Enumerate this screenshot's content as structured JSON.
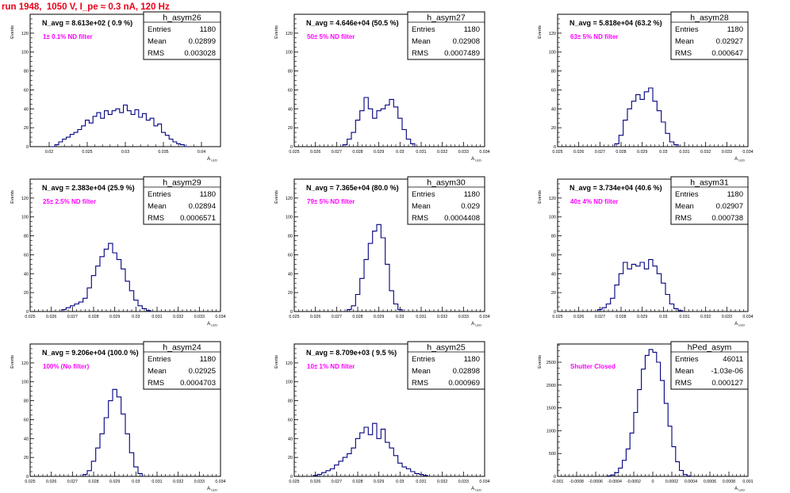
{
  "page_title": "run 1948,  1050 V, I_pe ≈ 0.3 nA, 120 Hz",
  "colors": {
    "hist": "#000080",
    "annot": "#ff00ff",
    "title": "#e8001a",
    "frame": "#000000"
  },
  "common": {
    "ylabel": "Events",
    "xlabel": "A",
    "xlabel_sub": "LED",
    "stat_labels": [
      "Entries",
      "Mean",
      "RMS"
    ]
  },
  "chart_data": [
    {
      "type": "histogram",
      "name": "h_asym26",
      "header": "N_avg = 8.613e+02 ( 0.9 %)",
      "annotation": "1± 0.1% ND filter",
      "stats": {
        "entries": "1180",
        "mean": "0.02899",
        "rms": "0.003028"
      },
      "xlim": [
        0.0175,
        0.0425
      ],
      "ylim": [
        0,
        140
      ],
      "xticks": [
        0.02,
        0.025,
        0.03,
        0.035,
        0.04
      ],
      "xtick_labels": [
        "0.02",
        "0.025",
        "0.03",
        "0.035",
        "0.04"
      ],
      "yticks": [
        0,
        20,
        40,
        60,
        80,
        100,
        120
      ],
      "x": [
        0.0205,
        0.021,
        0.0215,
        0.022,
        0.0225,
        0.023,
        0.0235,
        0.024,
        0.0245,
        0.025,
        0.0255,
        0.026,
        0.0265,
        0.027,
        0.0275,
        0.028,
        0.0285,
        0.029,
        0.0295,
        0.03,
        0.0305,
        0.031,
        0.0315,
        0.032,
        0.0325,
        0.033,
        0.0335,
        0.034,
        0.0345,
        0.035,
        0.0355,
        0.036,
        0.0365,
        0.037,
        0.0375,
        0.038
      ],
      "values": [
        0,
        2,
        5,
        8,
        10,
        13,
        15,
        18,
        22,
        28,
        25,
        32,
        36,
        30,
        38,
        34,
        38,
        40,
        36,
        44,
        38,
        34,
        39,
        31,
        35,
        28,
        30,
        22,
        24,
        15,
        12,
        8,
        5,
        3,
        2,
        0
      ]
    },
    {
      "type": "histogram",
      "name": "h_asym27",
      "header": "N_avg = 4.646e+04 (50.5 %)",
      "annotation": "50± 5% ND filter",
      "stats": {
        "entries": "1180",
        "mean": "0.02908",
        "rms": "0.0007489"
      },
      "xlim": [
        0.025,
        0.034
      ],
      "ylim": [
        0,
        140
      ],
      "xticks": [
        0.025,
        0.026,
        0.027,
        0.028,
        0.029,
        0.03,
        0.031,
        0.032,
        0.033,
        0.034
      ],
      "xtick_labels": [
        "0.025",
        "0.026",
        "0.027",
        "0.028",
        "0.029",
        "0.03",
        "0.031",
        "0.032",
        "0.033",
        "0.034"
      ],
      "yticks": [
        0,
        20,
        40,
        60,
        80,
        100,
        120
      ],
      "x": [
        0.0274,
        0.0276,
        0.0278,
        0.028,
        0.0282,
        0.0284,
        0.0286,
        0.0288,
        0.029,
        0.0292,
        0.0294,
        0.0296,
        0.0298,
        0.03,
        0.0302,
        0.0304,
        0.0306
      ],
      "values": [
        2,
        8,
        15,
        28,
        38,
        52,
        40,
        30,
        38,
        40,
        44,
        50,
        42,
        30,
        18,
        8,
        3
      ]
    },
    {
      "type": "histogram",
      "name": "h_asym28",
      "header": "N_avg = 5.818e+04 (63.2 %)",
      "annotation": "63± 5% ND filter",
      "stats": {
        "entries": "1180",
        "mean": "0.02927",
        "rms": "0.000647"
      },
      "xlim": [
        0.025,
        0.034
      ],
      "ylim": [
        0,
        140
      ],
      "xticks": [
        0.025,
        0.026,
        0.027,
        0.028,
        0.029,
        0.03,
        0.031,
        0.032,
        0.033,
        0.034
      ],
      "xtick_labels": [
        "0.025",
        "0.026",
        "0.027",
        "0.028",
        "0.029",
        "0.03",
        "0.031",
        "0.032",
        "0.033",
        "0.034"
      ],
      "yticks": [
        0,
        20,
        40,
        60,
        80,
        100,
        120
      ],
      "x": [
        0.0278,
        0.028,
        0.0282,
        0.0284,
        0.0286,
        0.0288,
        0.029,
        0.0292,
        0.0294,
        0.0296,
        0.0298,
        0.03,
        0.0302,
        0.0304,
        0.0306
      ],
      "values": [
        3,
        12,
        28,
        40,
        48,
        55,
        50,
        58,
        62,
        48,
        38,
        26,
        14,
        5,
        2
      ]
    },
    {
      "type": "histogram",
      "name": "h_asym29",
      "header": "N_avg = 2.383e+04 (25.9 %)",
      "annotation": "25± 2.5% ND filter",
      "stats": {
        "entries": "1180",
        "mean": "0.02894",
        "rms": "0.0006571"
      },
      "xlim": [
        0.025,
        0.034
      ],
      "ylim": [
        0,
        140
      ],
      "xticks": [
        0.025,
        0.026,
        0.027,
        0.028,
        0.029,
        0.03,
        0.031,
        0.032,
        0.033,
        0.034
      ],
      "xtick_labels": [
        "0.025",
        "0.026",
        "0.027",
        "0.028",
        "0.029",
        "0.03",
        "0.031",
        "0.032",
        "0.033",
        "0.034"
      ],
      "yticks": [
        0,
        20,
        40,
        60,
        80,
        100,
        120
      ],
      "x": [
        0.0266,
        0.0268,
        0.027,
        0.0272,
        0.0274,
        0.0276,
        0.0278,
        0.028,
        0.0282,
        0.0284,
        0.0286,
        0.0288,
        0.029,
        0.0292,
        0.0294,
        0.0296,
        0.0298,
        0.03,
        0.0302,
        0.0304,
        0.0306
      ],
      "values": [
        2,
        4,
        6,
        8,
        10,
        14,
        25,
        38,
        48,
        58,
        66,
        72,
        62,
        55,
        45,
        32,
        22,
        12,
        6,
        3,
        1
      ]
    },
    {
      "type": "histogram",
      "name": "h_asym30",
      "header": "N_avg = 7.365e+04 (80.0 %)",
      "annotation": "79± 5% ND filter",
      "stats": {
        "entries": "1180",
        "mean": "0.029",
        "rms": "0.0004408"
      },
      "xlim": [
        0.025,
        0.034
      ],
      "ylim": [
        0,
        140
      ],
      "xticks": [
        0.025,
        0.026,
        0.027,
        0.028,
        0.029,
        0.03,
        0.031,
        0.032,
        0.033,
        0.034
      ],
      "xtick_labels": [
        "0.025",
        "0.026",
        "0.027",
        "0.028",
        "0.029",
        "0.03",
        "0.031",
        "0.032",
        "0.033",
        "0.034"
      ],
      "yticks": [
        0,
        20,
        40,
        60,
        80,
        100,
        120
      ],
      "x": [
        0.0276,
        0.0278,
        0.028,
        0.0282,
        0.0284,
        0.0286,
        0.0288,
        0.029,
        0.0292,
        0.0294,
        0.0296,
        0.0298,
        0.03
      ],
      "values": [
        2,
        6,
        18,
        35,
        55,
        72,
        85,
        92,
        78,
        50,
        22,
        8,
        2
      ]
    },
    {
      "type": "histogram",
      "name": "h_asym31",
      "header": "N_avg = 3.734e+04 (40.6 %)",
      "annotation": "40± 4% ND filter",
      "stats": {
        "entries": "1180",
        "mean": "0.02907",
        "rms": "0.000738"
      },
      "xlim": [
        0.025,
        0.034
      ],
      "ylim": [
        0,
        140
      ],
      "xticks": [
        0.025,
        0.026,
        0.027,
        0.028,
        0.029,
        0.03,
        0.031,
        0.032,
        0.033,
        0.034
      ],
      "xtick_labels": [
        "0.025",
        "0.026",
        "0.027",
        "0.028",
        "0.029",
        "0.03",
        "0.031",
        "0.032",
        "0.033",
        "0.034"
      ],
      "yticks": [
        0,
        20,
        40,
        60,
        80,
        100,
        120
      ],
      "x": [
        0.027,
        0.0272,
        0.0274,
        0.0276,
        0.0278,
        0.028,
        0.0282,
        0.0284,
        0.0286,
        0.0288,
        0.029,
        0.0292,
        0.0294,
        0.0296,
        0.0298,
        0.03,
        0.0302,
        0.0304,
        0.0306,
        0.0308
      ],
      "values": [
        2,
        4,
        8,
        14,
        28,
        40,
        52,
        45,
        50,
        48,
        52,
        45,
        55,
        48,
        40,
        30,
        18,
        8,
        3,
        1
      ]
    },
    {
      "type": "histogram",
      "name": "h_asym24",
      "header": "N_avg = 9.206e+04 (100.0 %)",
      "annotation": "100% (No filter)",
      "stats": {
        "entries": "1180",
        "mean": "0.02925",
        "rms": "0.0004703"
      },
      "xlim": [
        0.025,
        0.034
      ],
      "ylim": [
        0,
        140
      ],
      "xticks": [
        0.025,
        0.026,
        0.027,
        0.028,
        0.029,
        0.03,
        0.031,
        0.032,
        0.033,
        0.034
      ],
      "xtick_labels": [
        "0.025",
        "0.026",
        "0.027",
        "0.028",
        "0.029",
        "0.03",
        "0.031",
        "0.032",
        "0.033",
        "0.034"
      ],
      "yticks": [
        0,
        20,
        40,
        60,
        80,
        100,
        120
      ],
      "x": [
        0.0276,
        0.0278,
        0.028,
        0.0282,
        0.0284,
        0.0286,
        0.0288,
        0.029,
        0.0292,
        0.0294,
        0.0296,
        0.0298,
        0.03,
        0.0302
      ],
      "values": [
        2,
        6,
        16,
        30,
        45,
        62,
        80,
        92,
        84,
        66,
        45,
        25,
        10,
        3
      ]
    },
    {
      "type": "histogram",
      "name": "h_asym25",
      "header": "N_avg = 8.709e+03 ( 9.5 %)",
      "annotation": "10± 1% ND filter",
      "stats": {
        "entries": "1180",
        "mean": "0.02898",
        "rms": "0.000969"
      },
      "xlim": [
        0.025,
        0.034
      ],
      "ylim": [
        0,
        140
      ],
      "xticks": [
        0.025,
        0.026,
        0.027,
        0.028,
        0.029,
        0.03,
        0.031,
        0.032,
        0.033,
        0.034
      ],
      "xtick_labels": [
        "0.025",
        "0.026",
        "0.027",
        "0.028",
        "0.029",
        "0.03",
        "0.031",
        "0.032",
        "0.033",
        "0.034"
      ],
      "yticks": [
        0,
        20,
        40,
        60,
        80,
        100,
        120
      ],
      "x": [
        0.026,
        0.0262,
        0.0264,
        0.0266,
        0.0268,
        0.027,
        0.0272,
        0.0274,
        0.0276,
        0.0278,
        0.028,
        0.0282,
        0.0284,
        0.0286,
        0.0288,
        0.029,
        0.0292,
        0.0294,
        0.0296,
        0.0298,
        0.03,
        0.0302,
        0.0304,
        0.0306,
        0.0308,
        0.031,
        0.0312
      ],
      "values": [
        1,
        2,
        4,
        6,
        8,
        12,
        16,
        20,
        24,
        30,
        40,
        46,
        52,
        44,
        56,
        40,
        50,
        36,
        30,
        22,
        14,
        10,
        8,
        5,
        3,
        2,
        1
      ]
    },
    {
      "type": "histogram",
      "name": "hPed_asym",
      "header": "",
      "annotation": "Shutter Closed",
      "stats": {
        "entries": "46011",
        "mean": "-1.03e-06",
        "rms": "0.000127"
      },
      "xlim": [
        -0.001,
        0.001
      ],
      "ylim": [
        0,
        2900
      ],
      "xticks": [
        -0.001,
        -0.0008,
        -0.0006,
        -0.0004,
        -0.0002,
        0,
        0.0002,
        0.0004,
        0.0006,
        0.0008,
        0.001
      ],
      "xtick_labels": [
        "-0.001",
        "-0.0008",
        "-0.0006",
        "-0.0004",
        "-0.0002",
        "0",
        "0.0002",
        "0.0004",
        "0.0006",
        "0.0008",
        "0.001"
      ],
      "yticks": [
        0,
        500,
        1000,
        1500,
        2000,
        2500
      ],
      "x": [
        -0.00046,
        -0.00042,
        -0.00038,
        -0.00034,
        -0.0003,
        -0.00026,
        -0.00022,
        -0.00018,
        -0.00014,
        -0.0001,
        -6e-05,
        -2e-05,
        2e-05,
        6e-05,
        0.0001,
        0.00014,
        0.00018,
        0.00022,
        0.00026,
        0.0003,
        0.00034,
        0.00038
      ],
      "values": [
        10,
        30,
        80,
        180,
        350,
        600,
        950,
        1400,
        1900,
        2350,
        2650,
        2780,
        2720,
        2500,
        2100,
        1600,
        1100,
        650,
        320,
        130,
        40,
        10
      ]
    }
  ]
}
